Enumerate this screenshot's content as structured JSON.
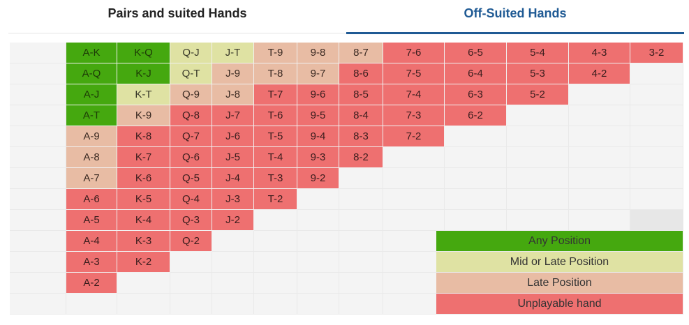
{
  "tabs": [
    {
      "label": "Pairs and suited Hands"
    },
    {
      "label": "Off-Suited Hands"
    }
  ],
  "colors": {
    "any_position": "#45a80f",
    "mid_or_late": "#dfe2a3",
    "late": "#e8bca4",
    "unplayable": "#ee7070",
    "tab_active": "#1f5a94"
  },
  "grid": {
    "rows": [
      [
        [
          "",
          ""
        ],
        [
          "A-K",
          "g"
        ],
        [
          "K-Q",
          "g"
        ],
        [
          "Q-J",
          "y"
        ],
        [
          "J-T",
          "y"
        ],
        [
          "T-9",
          "o"
        ],
        [
          "9-8",
          "o"
        ],
        [
          "8-7",
          "o"
        ],
        [
          "7-6",
          "r"
        ],
        [
          "6-5",
          "r"
        ],
        [
          "5-4",
          "r"
        ],
        [
          "4-3",
          "r"
        ],
        [
          "3-2",
          "r"
        ]
      ],
      [
        [
          "",
          ""
        ],
        [
          "A-Q",
          "g"
        ],
        [
          "K-J",
          "g"
        ],
        [
          "Q-T",
          "y"
        ],
        [
          "J-9",
          "o"
        ],
        [
          "T-8",
          "o"
        ],
        [
          "9-7",
          "o"
        ],
        [
          "8-6",
          "r"
        ],
        [
          "7-5",
          "r"
        ],
        [
          "6-4",
          "r"
        ],
        [
          "5-3",
          "r"
        ],
        [
          "4-2",
          "r"
        ],
        [
          "",
          ""
        ]
      ],
      [
        [
          "",
          ""
        ],
        [
          "A-J",
          "g"
        ],
        [
          "K-T",
          "y"
        ],
        [
          "Q-9",
          "o"
        ],
        [
          "J-8",
          "o"
        ],
        [
          "T-7",
          "r"
        ],
        [
          "9-6",
          "r"
        ],
        [
          "8-5",
          "r"
        ],
        [
          "7-4",
          "r"
        ],
        [
          "6-3",
          "r"
        ],
        [
          "5-2",
          "r"
        ],
        [
          "",
          ""
        ],
        [
          "",
          ""
        ]
      ],
      [
        [
          "",
          ""
        ],
        [
          "A-T",
          "g"
        ],
        [
          "K-9",
          "o"
        ],
        [
          "Q-8",
          "r"
        ],
        [
          "J-7",
          "r"
        ],
        [
          "T-6",
          "r"
        ],
        [
          "9-5",
          "r"
        ],
        [
          "8-4",
          "r"
        ],
        [
          "7-3",
          "r"
        ],
        [
          "6-2",
          "r"
        ],
        [
          "",
          ""
        ],
        [
          "",
          ""
        ],
        [
          "",
          ""
        ]
      ],
      [
        [
          "",
          ""
        ],
        [
          "A-9",
          "o"
        ],
        [
          "K-8",
          "r"
        ],
        [
          "Q-7",
          "r"
        ],
        [
          "J-6",
          "r"
        ],
        [
          "T-5",
          "r"
        ],
        [
          "9-4",
          "r"
        ],
        [
          "8-3",
          "r"
        ],
        [
          "7-2",
          "r"
        ],
        [
          "",
          ""
        ],
        [
          "",
          ""
        ],
        [
          "",
          ""
        ],
        [
          "",
          ""
        ]
      ],
      [
        [
          "",
          ""
        ],
        [
          "A-8",
          "o"
        ],
        [
          "K-7",
          "r"
        ],
        [
          "Q-6",
          "r"
        ],
        [
          "J-5",
          "r"
        ],
        [
          "T-4",
          "r"
        ],
        [
          "9-3",
          "r"
        ],
        [
          "8-2",
          "r"
        ],
        [
          "",
          ""
        ],
        [
          "",
          ""
        ],
        [
          "",
          ""
        ],
        [
          "",
          ""
        ],
        [
          "",
          ""
        ]
      ],
      [
        [
          "",
          ""
        ],
        [
          "A-7",
          "o"
        ],
        [
          "K-6",
          "r"
        ],
        [
          "Q-5",
          "r"
        ],
        [
          "J-4",
          "r"
        ],
        [
          "T-3",
          "r"
        ],
        [
          "9-2",
          "r"
        ],
        [
          "",
          ""
        ],
        [
          "",
          ""
        ],
        [
          "",
          ""
        ],
        [
          "",
          ""
        ],
        [
          "",
          ""
        ],
        [
          "",
          ""
        ]
      ],
      [
        [
          "",
          ""
        ],
        [
          "A-6",
          "r"
        ],
        [
          "K-5",
          "r"
        ],
        [
          "Q-4",
          "r"
        ],
        [
          "J-3",
          "r"
        ],
        [
          "T-2",
          "r"
        ],
        [
          "",
          ""
        ],
        [
          "",
          ""
        ],
        [
          "",
          ""
        ],
        [
          "",
          ""
        ],
        [
          "",
          ""
        ],
        [
          "",
          ""
        ],
        [
          "",
          ""
        ]
      ],
      [
        [
          "",
          ""
        ],
        [
          "A-5",
          "r"
        ],
        [
          "K-4",
          "r"
        ],
        [
          "Q-3",
          "r"
        ],
        [
          "J-2",
          "r"
        ],
        [
          "",
          ""
        ],
        [
          "",
          ""
        ],
        [
          "",
          ""
        ],
        [
          "",
          ""
        ],
        [
          "",
          ""
        ],
        [
          "",
          ""
        ],
        [
          "",
          ""
        ],
        [
          "",
          "lg"
        ]
      ],
      [
        [
          "",
          ""
        ],
        [
          "A-4",
          "r"
        ],
        [
          "K-3",
          "r"
        ],
        [
          "Q-2",
          "r"
        ],
        [
          "",
          ""
        ],
        [
          "",
          ""
        ],
        [
          "",
          ""
        ],
        [
          "",
          ""
        ],
        [
          "",
          ""
        ],
        [
          "",
          ""
        ],
        [
          "",
          ""
        ],
        [
          "",
          ""
        ],
        [
          "",
          ""
        ]
      ],
      [
        [
          "",
          ""
        ],
        [
          "A-3",
          "r"
        ],
        [
          "K-2",
          "r"
        ],
        [
          "",
          ""
        ],
        [
          "",
          ""
        ],
        [
          "",
          ""
        ],
        [
          "",
          ""
        ],
        [
          "",
          ""
        ],
        [
          "",
          ""
        ],
        [
          "",
          ""
        ],
        [
          "",
          ""
        ],
        [
          "",
          ""
        ],
        [
          "",
          ""
        ]
      ],
      [
        [
          "",
          ""
        ],
        [
          "A-2",
          "r"
        ],
        [
          "",
          ""
        ],
        [
          "",
          ""
        ],
        [
          "",
          ""
        ],
        [
          "",
          ""
        ],
        [
          "",
          ""
        ],
        [
          "",
          ""
        ],
        [
          "",
          ""
        ],
        [
          "",
          ""
        ],
        [
          "",
          ""
        ],
        [
          "",
          ""
        ],
        [
          "",
          ""
        ]
      ],
      [
        [
          "",
          ""
        ],
        [
          "",
          ""
        ],
        [
          "",
          ""
        ],
        [
          "",
          ""
        ],
        [
          "",
          ""
        ],
        [
          "",
          ""
        ],
        [
          "",
          ""
        ],
        [
          "",
          ""
        ],
        [
          "",
          ""
        ],
        [
          "",
          ""
        ],
        [
          "",
          ""
        ],
        [
          "",
          ""
        ],
        [
          "",
          ""
        ]
      ]
    ]
  },
  "legend": [
    {
      "label": "Any Position",
      "color": "g"
    },
    {
      "label": "Mid or Late Position",
      "color": "y"
    },
    {
      "label": "Late Position",
      "color": "o"
    },
    {
      "label": "Unplayable hand",
      "color": "r"
    }
  ]
}
